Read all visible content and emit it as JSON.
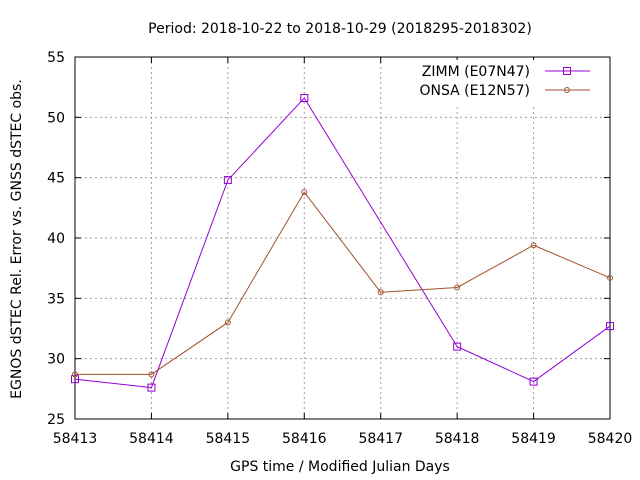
{
  "chart_data": {
    "type": "line",
    "title": "Period: 2018-10-22 to 2018-10-29 (2018295-2018302)",
    "xlabel": "GPS time / Modified Julian Days",
    "ylabel": "EGNOS dSTEC Rel. Error vs. GNSS dSTEC obs.",
    "xlim": [
      58413,
      58420
    ],
    "ylim": [
      25,
      55
    ],
    "xticks": [
      58413,
      58414,
      58415,
      58416,
      58417,
      58418,
      58419,
      58420
    ],
    "yticks": [
      25,
      30,
      35,
      40,
      45,
      50,
      55
    ],
    "grid": true,
    "legend_position": "top-right",
    "series": [
      {
        "name": "ZIMM (E07N47)",
        "color": "#9400d3",
        "marker": "open-square",
        "x": [
          58413,
          58414,
          58415,
          58416,
          58418,
          58419,
          58420
        ],
        "y": [
          28.3,
          27.6,
          44.8,
          51.6,
          31.0,
          28.1,
          32.7
        ]
      },
      {
        "name": "ONSA (E12N57)",
        "color": "#a0522d",
        "marker": "open-circle",
        "x": [
          58413,
          58414,
          58415,
          58416,
          58417,
          58418,
          58419,
          58420
        ],
        "y": [
          28.7,
          28.7,
          33.0,
          43.8,
          35.5,
          35.9,
          39.4,
          36.7
        ]
      }
    ]
  }
}
